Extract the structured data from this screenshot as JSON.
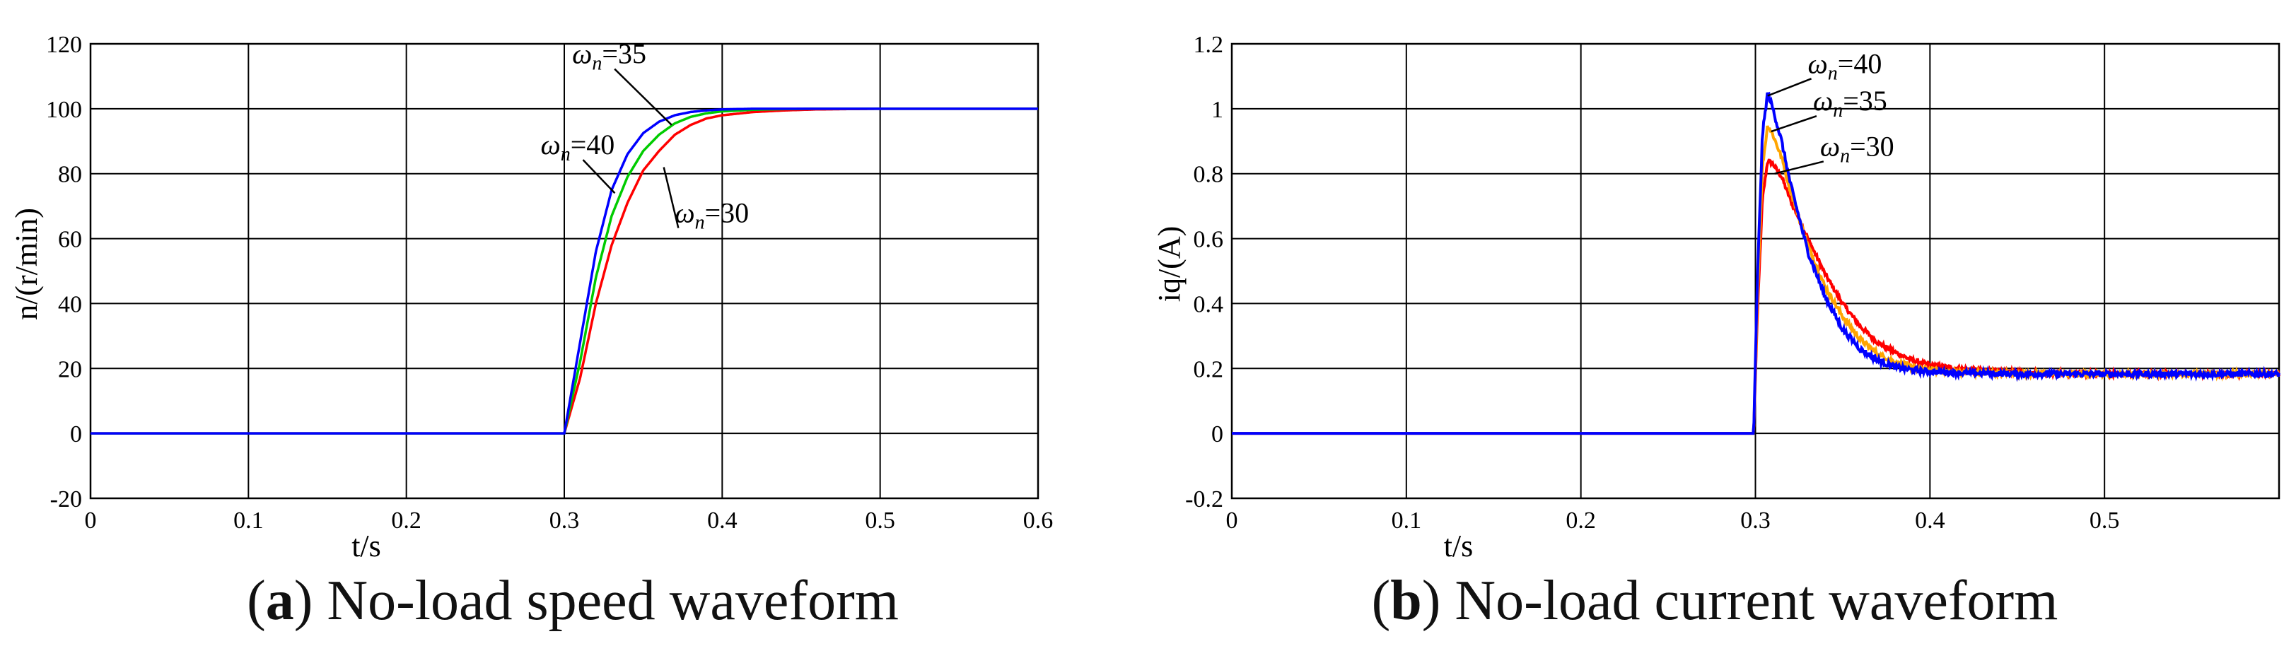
{
  "charts": [
    {
      "id": "a",
      "caption": {
        "letter": "a",
        "text": "No-load speed waveform"
      },
      "chart_data": {
        "type": "line",
        "title": "",
        "xlabel": "t/s",
        "ylabel": "n/(r/min)",
        "xlim": [
          0,
          0.6
        ],
        "ylim": [
          -20,
          120
        ],
        "xticks": [
          "0",
          "0.1",
          "0.2",
          "0.3",
          "0.4",
          "0.5",
          "0.6"
        ],
        "yticks": [
          "-20",
          "0",
          "20",
          "40",
          "60",
          "80",
          "100",
          "120"
        ],
        "grid": true,
        "series": [
          {
            "name": "ωn=30",
            "color": "#ff0000",
            "x": [
              0,
              0.3,
              0.31,
              0.32,
              0.33,
              0.34,
              0.35,
              0.36,
              0.37,
              0.38,
              0.39,
              0.4,
              0.42,
              0.44,
              0.46,
              0.48,
              0.5,
              0.55,
              0.6
            ],
            "y": [
              0,
              0,
              17,
              40,
              58,
              71,
              81,
              87,
              92,
              95,
              97,
              98,
              99,
              99.5,
              99.8,
              99.9,
              100,
              100,
              100
            ]
          },
          {
            "name": "ωn=35",
            "color": "#00cc00",
            "x": [
              0,
              0.3,
              0.31,
              0.32,
              0.33,
              0.34,
              0.35,
              0.36,
              0.37,
              0.38,
              0.39,
              0.4,
              0.42,
              0.44,
              0.46,
              0.48,
              0.5,
              0.55,
              0.6
            ],
            "y": [
              0,
              0,
              22,
              48,
              67,
              79,
              87,
              92,
              95.5,
              97.5,
              98.6,
              99.2,
              99.7,
              99.9,
              100,
              100,
              100,
              100,
              100
            ]
          },
          {
            "name": "ωn=40",
            "color": "#0000ff",
            "x": [
              0,
              0.3,
              0.31,
              0.32,
              0.33,
              0.34,
              0.35,
              0.36,
              0.37,
              0.38,
              0.39,
              0.4,
              0.42,
              0.44,
              0.46,
              0.48,
              0.5,
              0.55,
              0.6
            ],
            "y": [
              0,
              0,
              28,
              56,
              75,
              86,
              92.5,
              96,
              98,
              99,
              99.5,
              99.8,
              100,
              100,
              100,
              100,
              100,
              100,
              100
            ]
          }
        ],
        "annotations": [
          {
            "text": "ω",
            "sub": "n",
            "rest": "=35",
            "tx": 0.305,
            "ty": 114,
            "ax": 0.368,
            "ay": 95
          },
          {
            "text": "ω",
            "sub": "n",
            "rest": "=40",
            "tx": 0.285,
            "ty": 86,
            "ax": 0.332,
            "ay": 74
          },
          {
            "text": "ω",
            "sub": "n",
            "rest": "=30",
            "tx": 0.37,
            "ty": 65,
            "ax": 0.363,
            "ay": 82
          }
        ]
      }
    },
    {
      "id": "b",
      "caption": {
        "letter": "b",
        "text": "No-load current waveform"
      },
      "chart_data": {
        "type": "line",
        "title": "",
        "xlabel": "t/s",
        "ylabel": "iq/(A)",
        "xlim": [
          0,
          0.6
        ],
        "ylim": [
          -0.2,
          1.2
        ],
        "xticks": [
          "0",
          "0.1",
          "0.2",
          "0.3",
          "0.4",
          "0.5"
        ],
        "yticks": [
          "-0.2",
          "0",
          "0.2",
          "0.4",
          "0.6",
          "0.8",
          "1",
          "1.2"
        ],
        "grid": true,
        "series": [
          {
            "name": "ωn=30",
            "color": "#ff0000",
            "noise": 0.007,
            "x": [
              0,
              0.299,
              0.301,
              0.304,
              0.307,
              0.31,
              0.315,
              0.32,
              0.33,
              0.34,
              0.35,
              0.36,
              0.37,
              0.38,
              0.39,
              0.4,
              0.42,
              0.44,
              0.46,
              0.5,
              0.55,
              0.6
            ],
            "y": [
              0,
              0,
              0.35,
              0.72,
              0.84,
              0.83,
              0.79,
              0.72,
              0.6,
              0.49,
              0.4,
              0.33,
              0.28,
              0.25,
              0.225,
              0.21,
              0.198,
              0.19,
              0.186,
              0.184,
              0.183,
              0.183
            ]
          },
          {
            "name": "ωn=35",
            "color": "#ffa500",
            "noise": 0.008,
            "x": [
              0,
              0.299,
              0.301,
              0.304,
              0.307,
              0.31,
              0.315,
              0.32,
              0.33,
              0.34,
              0.35,
              0.36,
              0.37,
              0.38,
              0.39,
              0.4,
              0.42,
              0.44,
              0.46,
              0.5,
              0.55,
              0.6
            ],
            "y": [
              0,
              0,
              0.4,
              0.82,
              0.95,
              0.92,
              0.85,
              0.75,
              0.58,
              0.45,
              0.36,
              0.29,
              0.245,
              0.22,
              0.205,
              0.195,
              0.188,
              0.185,
              0.184,
              0.183,
              0.183,
              0.183
            ]
          },
          {
            "name": "ωn=40",
            "color": "#0000ff",
            "noise": 0.009,
            "x": [
              0,
              0.299,
              0.301,
              0.304,
              0.307,
              0.31,
              0.315,
              0.32,
              0.33,
              0.34,
              0.35,
              0.36,
              0.37,
              0.38,
              0.39,
              0.4,
              0.42,
              0.44,
              0.46,
              0.5,
              0.55,
              0.6
            ],
            "y": [
              0,
              0,
              0.45,
              0.92,
              1.05,
              1.0,
              0.9,
              0.77,
              0.56,
              0.42,
              0.32,
              0.26,
              0.225,
              0.205,
              0.195,
              0.19,
              0.186,
              0.184,
              0.183,
              0.183,
              0.183,
              0.183
            ]
          }
        ],
        "annotations": [
          {
            "text": "ω",
            "sub": "n",
            "rest": "=40",
            "tx": 0.33,
            "ty": 1.11,
            "ax": 0.307,
            "ay": 1.04
          },
          {
            "text": "ω",
            "sub": "n",
            "rest": "=35",
            "tx": 0.333,
            "ty": 0.995,
            "ax": 0.309,
            "ay": 0.93
          },
          {
            "text": "ω",
            "sub": "n",
            "rest": "=30",
            "tx": 0.337,
            "ty": 0.855,
            "ax": 0.311,
            "ay": 0.8
          }
        ]
      }
    }
  ]
}
